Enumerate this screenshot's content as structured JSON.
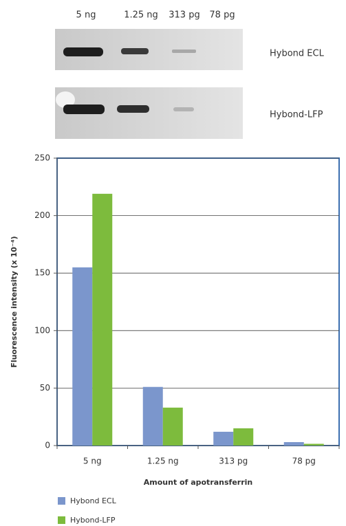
{
  "blot": {
    "lanes": [
      "5 ng",
      "1.25 ng",
      "313 pg",
      "78 pg"
    ],
    "rows": [
      "Hybond ECL",
      "Hybond-LFP"
    ]
  },
  "chart_data": {
    "type": "bar",
    "x_label": "Amount of apotransferrin",
    "y_label": "Fluorescence intensity (x 10⁻⁴)",
    "categories": [
      "5 ng",
      "1.25 ng",
      "313 pg",
      "78 pg"
    ],
    "series": [
      {
        "name": "Hybond ECL",
        "color": "#7b96cc",
        "values": [
          155,
          51,
          12,
          3
        ]
      },
      {
        "name": "Hybond-LFP",
        "color": "#7dbb3d",
        "values": [
          219,
          33,
          15,
          1.5
        ]
      }
    ],
    "ylim": [
      0,
      250
    ],
    "yticks": [
      0,
      50,
      100,
      150,
      200,
      250
    ],
    "grid": true
  }
}
